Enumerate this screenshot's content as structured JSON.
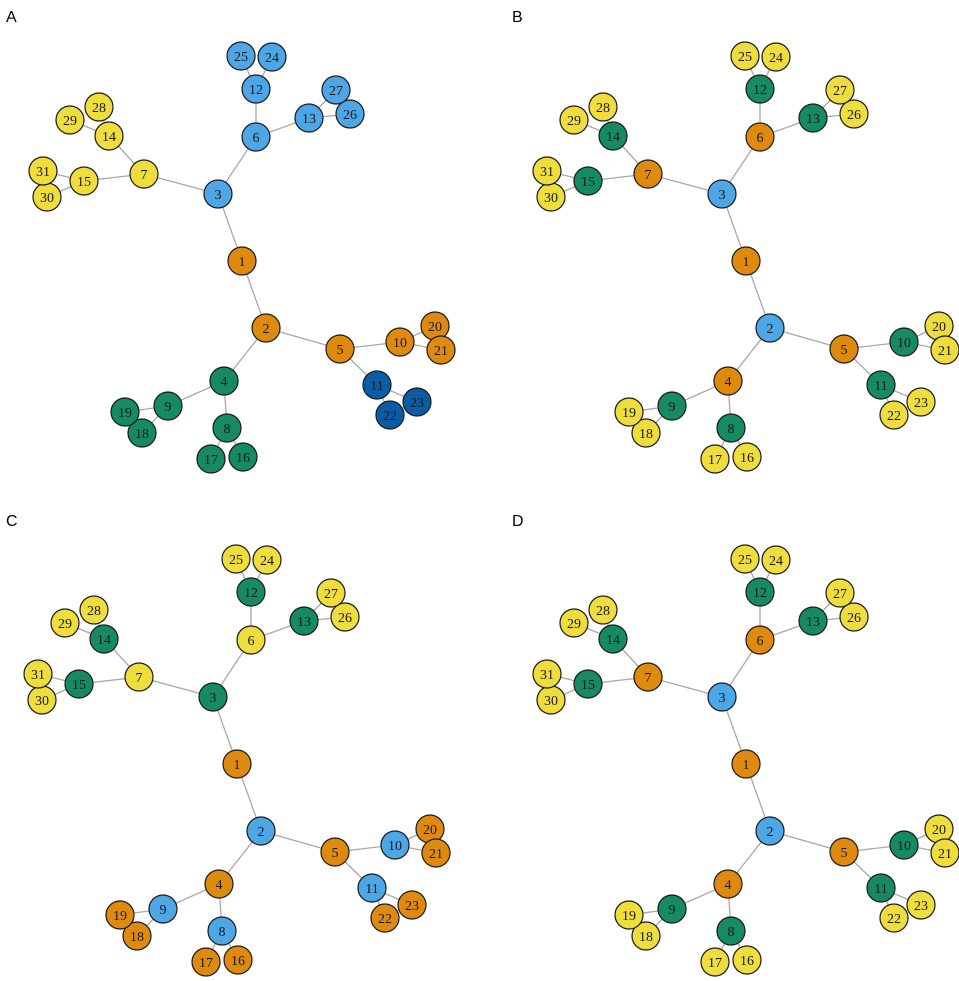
{
  "palette": {
    "yellow": "#eedd3c",
    "blue": "#4da6e6",
    "orange": "#de8a0e",
    "green": "#168a63",
    "darkblue": "#0a5ca6"
  },
  "edges": [
    [
      1,
      2
    ],
    [
      1,
      3
    ],
    [
      2,
      4
    ],
    [
      2,
      5
    ],
    [
      3,
      6
    ],
    [
      3,
      7
    ],
    [
      4,
      8
    ],
    [
      4,
      9
    ],
    [
      5,
      10
    ],
    [
      5,
      11
    ],
    [
      6,
      12
    ],
    [
      6,
      13
    ],
    [
      7,
      14
    ],
    [
      7,
      15
    ],
    [
      8,
      16
    ],
    [
      8,
      17
    ],
    [
      9,
      18
    ],
    [
      9,
      19
    ],
    [
      10,
      20
    ],
    [
      10,
      21
    ],
    [
      11,
      22
    ],
    [
      11,
      23
    ],
    [
      12,
      24
    ],
    [
      12,
      25
    ],
    [
      13,
      26
    ],
    [
      13,
      27
    ],
    [
      14,
      28
    ],
    [
      14,
      29
    ],
    [
      15,
      30
    ],
    [
      15,
      31
    ]
  ],
  "panels": [
    {
      "label": "A",
      "colors": {
        "1": "orange",
        "2": "orange",
        "3": "blue",
        "4": "green",
        "5": "orange",
        "6": "blue",
        "7": "yellow",
        "8": "green",
        "9": "green",
        "10": "orange",
        "11": "darkblue",
        "12": "blue",
        "13": "blue",
        "14": "yellow",
        "15": "yellow",
        "16": "green",
        "17": "green",
        "18": "green",
        "19": "green",
        "20": "orange",
        "21": "orange",
        "22": "darkblue",
        "23": "darkblue",
        "24": "blue",
        "25": "blue",
        "26": "blue",
        "27": "blue",
        "28": "yellow",
        "29": "yellow",
        "30": "yellow",
        "31": "yellow"
      }
    },
    {
      "label": "B",
      "colors": {
        "1": "orange",
        "2": "blue",
        "3": "blue",
        "4": "orange",
        "5": "orange",
        "6": "orange",
        "7": "orange",
        "8": "green",
        "9": "green",
        "10": "green",
        "11": "green",
        "12": "green",
        "13": "green",
        "14": "green",
        "15": "green",
        "16": "yellow",
        "17": "yellow",
        "18": "yellow",
        "19": "yellow",
        "20": "yellow",
        "21": "yellow",
        "22": "yellow",
        "23": "yellow",
        "24": "yellow",
        "25": "yellow",
        "26": "yellow",
        "27": "yellow",
        "28": "yellow",
        "29": "yellow",
        "30": "yellow",
        "31": "yellow"
      }
    },
    {
      "label": "C",
      "colors": {
        "1": "orange",
        "2": "blue",
        "3": "green",
        "4": "orange",
        "5": "orange",
        "6": "yellow",
        "7": "yellow",
        "8": "blue",
        "9": "blue",
        "10": "blue",
        "11": "blue",
        "12": "green",
        "13": "green",
        "14": "green",
        "15": "green",
        "16": "orange",
        "17": "orange",
        "18": "orange",
        "19": "orange",
        "20": "orange",
        "21": "orange",
        "22": "orange",
        "23": "orange",
        "24": "yellow",
        "25": "yellow",
        "26": "yellow",
        "27": "yellow",
        "28": "yellow",
        "29": "yellow",
        "30": "yellow",
        "31": "yellow"
      }
    },
    {
      "label": "D",
      "colors": {
        "1": "orange",
        "2": "blue",
        "3": "blue",
        "4": "orange",
        "5": "orange",
        "6": "orange",
        "7": "orange",
        "8": "green",
        "9": "green",
        "10": "green",
        "11": "green",
        "12": "green",
        "13": "green",
        "14": "green",
        "15": "green",
        "16": "yellow",
        "17": "yellow",
        "18": "yellow",
        "19": "yellow",
        "20": "yellow",
        "21": "yellow",
        "22": "yellow",
        "23": "yellow",
        "24": "yellow",
        "25": "yellow",
        "26": "yellow",
        "27": "yellow",
        "28": "yellow",
        "29": "yellow",
        "30": "yellow",
        "31": "yellow"
      }
    }
  ]
}
